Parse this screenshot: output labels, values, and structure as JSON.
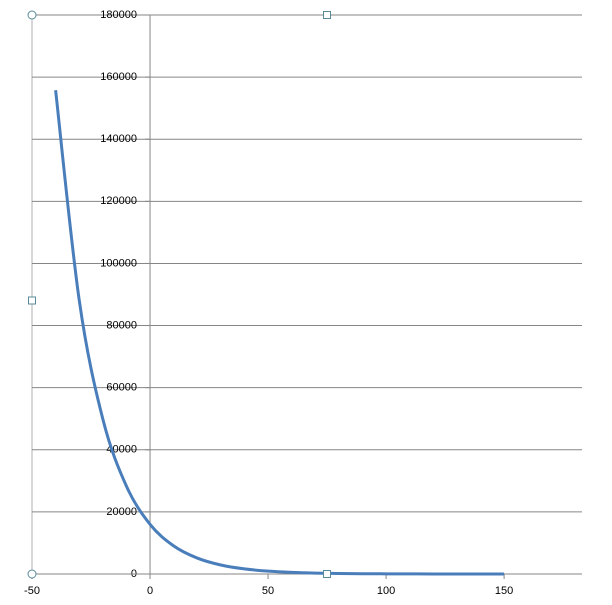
{
  "chart_data": {
    "type": "line",
    "smooth": true,
    "x": [
      -40,
      -30,
      -20,
      -10,
      0,
      10,
      20,
      30,
      40,
      50,
      60,
      70,
      80,
      90,
      100,
      110,
      120,
      130,
      140,
      150
    ],
    "series": [
      {
        "color": "#4a7ebb",
        "values": [
          155800,
          88200,
          49900,
          28300,
          16000,
          9060,
          5130,
          2900,
          1640,
          930,
          530,
          300,
          170,
          95,
          54,
          30,
          17,
          10,
          5,
          3
        ]
      }
    ],
    "xlim": [
      -50,
      183
    ],
    "xticks": [
      -50,
      0,
      50,
      100,
      150
    ],
    "ylim": [
      0,
      180000
    ],
    "yticks": [
      0,
      20000,
      40000,
      60000,
      80000,
      100000,
      120000,
      140000,
      160000,
      180000
    ],
    "grid": true
  }
}
